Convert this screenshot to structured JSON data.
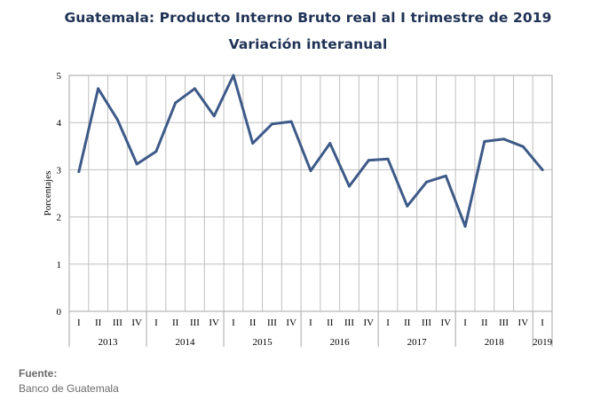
{
  "chart_data": {
    "type": "line",
    "title": "Guatemala: Producto Interno Bruto real al I trimestre de 2019",
    "subtitle": "Variación interanual",
    "ylabel": "Porcentajes",
    "ylim": [
      0,
      5
    ],
    "yticks": [
      0,
      1,
      2,
      3,
      4,
      5
    ],
    "grid": true,
    "line_color": "#3d5a88",
    "years": [
      {
        "label": "2013",
        "quarters": [
          "I",
          "II",
          "III",
          "IV"
        ]
      },
      {
        "label": "2014",
        "quarters": [
          "I",
          "II",
          "III",
          "IV"
        ]
      },
      {
        "label": "2015",
        "quarters": [
          "I",
          "II",
          "III",
          "IV"
        ]
      },
      {
        "label": "2016",
        "quarters": [
          "I",
          "II",
          "III",
          "IV"
        ]
      },
      {
        "label": "2017",
        "quarters": [
          "I",
          "II",
          "III",
          "IV"
        ]
      },
      {
        "label": "2018",
        "quarters": [
          "I",
          "II",
          "III",
          "IV"
        ]
      },
      {
        "label": "2019",
        "quarters": [
          "I"
        ]
      }
    ],
    "values": [
      2.96,
      4.72,
      4.06,
      3.12,
      3.39,
      4.42,
      4.72,
      4.14,
      5.0,
      3.56,
      3.97,
      4.02,
      2.98,
      3.56,
      2.65,
      3.2,
      3.23,
      2.23,
      2.74,
      2.87,
      1.8,
      3.6,
      3.65,
      3.49,
      3.0
    ]
  },
  "source": {
    "label": "Fuente:",
    "value": "Banco de Guatemala"
  }
}
